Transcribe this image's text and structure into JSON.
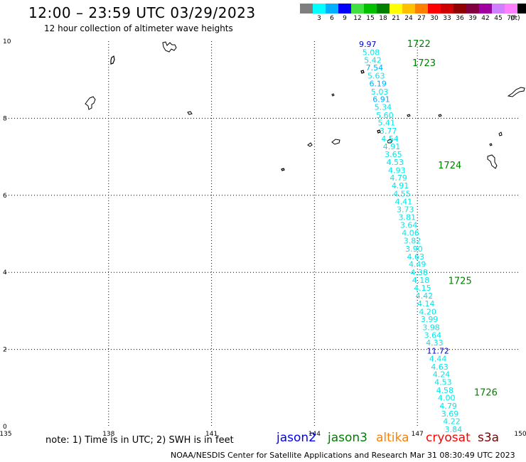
{
  "header": {
    "title": "12:00 – 23:59 UTC 03/29/2023",
    "subtitle": "12 hour collection of altimeter wave heights"
  },
  "color_scale": {
    "colors": [
      "#7f7f7f",
      "#00ffff",
      "#00b0ff",
      "#0000ff",
      "#40e040",
      "#00c000",
      "#008000",
      "#ffff00",
      "#ffc000",
      "#ff8000",
      "#ff0000",
      "#d00000",
      "#900000",
      "#800040",
      "#a000a0",
      "#d080ff",
      "#ff80ff",
      "#000000"
    ],
    "labels": [
      "",
      "3",
      "6",
      "9",
      "12",
      "15",
      "18",
      "21",
      "24",
      "27",
      "30",
      "33",
      "36",
      "39",
      "42",
      "45",
      "70",
      ""
    ],
    "unit": "(ft)"
  },
  "chart_data": {
    "type": "scatter",
    "x_axis": {
      "range": [
        135,
        150
      ],
      "ticks": [
        "135",
        "138",
        "141",
        "144",
        "147",
        "150"
      ]
    },
    "y_axis": {
      "range": [
        0,
        10
      ],
      "ticks": [
        "0",
        "2",
        "4",
        "6",
        "8",
        "10"
      ]
    },
    "grid": true,
    "track_labels": [
      {
        "text": "1722",
        "lat": 9.85,
        "lon": 146.7
      },
      {
        "text": "1723",
        "lat": 9.35,
        "lon": 146.85
      },
      {
        "text": "1724",
        "lat": 6.7,
        "lon": 147.6
      },
      {
        "text": "1725",
        "lat": 3.7,
        "lon": 147.9
      },
      {
        "text": "1726",
        "lat": 0.8,
        "lon": 148.65
      }
    ],
    "wave_heights": [
      {
        "lat": 9.85,
        "lon": 145.55,
        "value": "9.97",
        "color": "#0000cc"
      },
      {
        "lat": 9.64,
        "lon": 145.65,
        "value": "5.08",
        "color": "#00e8e8"
      },
      {
        "lat": 9.44,
        "lon": 145.7,
        "value": "5.42",
        "color": "#00e8e8"
      },
      {
        "lat": 9.24,
        "lon": 145.75,
        "value": "7.54",
        "color": "#00b0ff"
      },
      {
        "lat": 9.03,
        "lon": 145.8,
        "value": "5.63",
        "color": "#00e8e8"
      },
      {
        "lat": 8.83,
        "lon": 145.85,
        "value": "6.19",
        "color": "#00b0ff"
      },
      {
        "lat": 8.62,
        "lon": 145.9,
        "value": "5.03",
        "color": "#00e8e8"
      },
      {
        "lat": 8.42,
        "lon": 145.95,
        "value": "6.91",
        "color": "#00b0ff"
      },
      {
        "lat": 8.22,
        "lon": 146.0,
        "value": "5.34",
        "color": "#00e8e8"
      },
      {
        "lat": 8.01,
        "lon": 146.05,
        "value": "5.60",
        "color": "#00e8e8"
      },
      {
        "lat": 7.81,
        "lon": 146.1,
        "value": "5.41",
        "color": "#00e8e8"
      },
      {
        "lat": 7.6,
        "lon": 146.15,
        "value": "3.77",
        "color": "#00e8e8"
      },
      {
        "lat": 7.4,
        "lon": 146.2,
        "value": "4.54",
        "color": "#00e8e8"
      },
      {
        "lat": 7.2,
        "lon": 146.25,
        "value": "4.91",
        "color": "#00e8e8"
      },
      {
        "lat": 6.99,
        "lon": 146.3,
        "value": "3.65",
        "color": "#00e8e8"
      },
      {
        "lat": 6.79,
        "lon": 146.35,
        "value": "4.53",
        "color": "#00e8e8"
      },
      {
        "lat": 6.58,
        "lon": 146.4,
        "value": "4.93",
        "color": "#00e8e8"
      },
      {
        "lat": 6.38,
        "lon": 146.45,
        "value": "4.79",
        "color": "#00e8e8"
      },
      {
        "lat": 6.18,
        "lon": 146.5,
        "value": "4.91",
        "color": "#00e8e8"
      },
      {
        "lat": 5.97,
        "lon": 146.55,
        "value": "4.55",
        "color": "#00e8e8"
      },
      {
        "lat": 5.77,
        "lon": 146.6,
        "value": "4.41",
        "color": "#00e8e8"
      },
      {
        "lat": 5.56,
        "lon": 146.65,
        "value": "3.73",
        "color": "#00e8e8"
      },
      {
        "lat": 5.36,
        "lon": 146.7,
        "value": "3.81",
        "color": "#00e8e8"
      },
      {
        "lat": 5.16,
        "lon": 146.75,
        "value": "3.64",
        "color": "#00e8e8"
      },
      {
        "lat": 4.95,
        "lon": 146.8,
        "value": "4.06",
        "color": "#00e8e8"
      },
      {
        "lat": 4.75,
        "lon": 146.85,
        "value": "3.82",
        "color": "#00e8e8"
      },
      {
        "lat": 4.54,
        "lon": 146.9,
        "value": "3.90",
        "color": "#00e8e8"
      },
      {
        "lat": 4.34,
        "lon": 146.95,
        "value": "4.63",
        "color": "#00e8e8"
      },
      {
        "lat": 4.14,
        "lon": 147.0,
        "value": "4.49",
        "color": "#00e8e8"
      },
      {
        "lat": 3.93,
        "lon": 147.05,
        "value": "4.38",
        "color": "#00e8e8"
      },
      {
        "lat": 3.73,
        "lon": 147.1,
        "value": "4.18",
        "color": "#00e8e8"
      },
      {
        "lat": 3.52,
        "lon": 147.15,
        "value": "4.15",
        "color": "#00e8e8"
      },
      {
        "lat": 3.32,
        "lon": 147.2,
        "value": "4.42",
        "color": "#00e8e8"
      },
      {
        "lat": 3.12,
        "lon": 147.25,
        "value": "4.14",
        "color": "#00e8e8"
      },
      {
        "lat": 2.91,
        "lon": 147.3,
        "value": "4.20",
        "color": "#00e8e8"
      },
      {
        "lat": 2.71,
        "lon": 147.35,
        "value": "3.99",
        "color": "#00e8e8"
      },
      {
        "lat": 2.5,
        "lon": 147.4,
        "value": "3.98",
        "color": "#00e8e8"
      },
      {
        "lat": 2.3,
        "lon": 147.45,
        "value": "3.64",
        "color": "#00e8e8"
      },
      {
        "lat": 2.1,
        "lon": 147.5,
        "value": "4.33",
        "color": "#00e8e8"
      },
      {
        "lat": 1.89,
        "lon": 147.6,
        "value": "11.72",
        "color": "#0000cc"
      },
      {
        "lat": 1.69,
        "lon": 147.6,
        "value": "4.44",
        "color": "#00e8e8"
      },
      {
        "lat": 1.48,
        "lon": 147.65,
        "value": "4.63",
        "color": "#00e8e8"
      },
      {
        "lat": 1.28,
        "lon": 147.7,
        "value": "4.24",
        "color": "#00e8e8"
      },
      {
        "lat": 1.08,
        "lon": 147.75,
        "value": "4.53",
        "color": "#00e8e8"
      },
      {
        "lat": 0.87,
        "lon": 147.8,
        "value": "4.58",
        "color": "#00e8e8"
      },
      {
        "lat": 0.67,
        "lon": 147.85,
        "value": "4.00",
        "color": "#00e8e8"
      },
      {
        "lat": 0.46,
        "lon": 147.9,
        "value": "4.79",
        "color": "#00e8e8"
      },
      {
        "lat": 0.26,
        "lon": 147.95,
        "value": "3.69",
        "color": "#00e8e8"
      },
      {
        "lat": 0.06,
        "lon": 148.0,
        "value": "4.22",
        "color": "#00e8e8"
      },
      {
        "lat": -0.15,
        "lon": 148.05,
        "value": "3.84",
        "color": "#00e8e8"
      }
    ]
  },
  "footer": {
    "note": "note:  1) Time is in UTC;  2) SWH is in feet",
    "legend": [
      {
        "name": "jason2",
        "color": "#0000ff"
      },
      {
        "name": "jason3",
        "color": "#008000"
      },
      {
        "name": "altika",
        "color": "#ff8000"
      },
      {
        "name": "cryosat",
        "color": "#ff0000"
      },
      {
        "name": "s3a",
        "color": "#800000"
      }
    ],
    "credit": "NOAA/NESDIS Center for Satellite Applications and Research   Mar 31 08:30:49 UTC 2023"
  }
}
